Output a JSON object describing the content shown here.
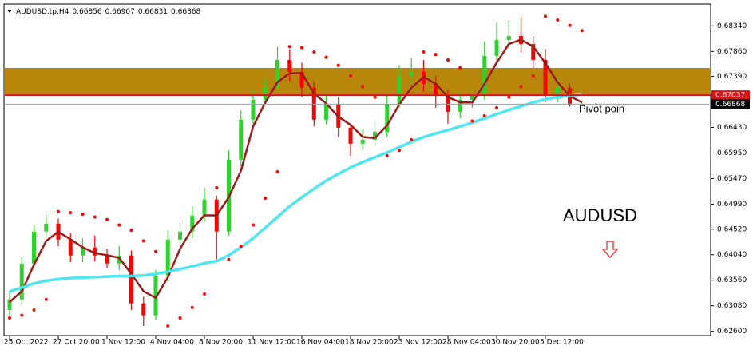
{
  "chart_data": {
    "type": "candlestick",
    "symbol": "AUDUSD.tp,H4",
    "categories": [
      "25 Oct 2022",
      null,
      null,
      null,
      "27 Oct 20:00",
      null,
      null,
      null,
      "1 Nov 12:00",
      null,
      null,
      null,
      "4 Nov 04:00",
      null,
      null,
      null,
      "8 Nov 20:00",
      null,
      null,
      null,
      "11 Nov 12:00",
      null,
      null,
      null,
      "16 Nov 04:00",
      null,
      null,
      null,
      "18 Nov 20:00",
      null,
      null,
      null,
      "23 Nov 12:00",
      null,
      null,
      null,
      "28 Nov 04:00",
      null,
      null,
      null,
      "30 Nov 20:00",
      null,
      null,
      null,
      "5 Dec 12:00",
      null,
      null,
      null
    ],
    "open": [
      0.63,
      0.632,
      0.63875,
      0.64475,
      0.64625,
      0.64325,
      0.64025,
      0.64175,
      0.64025,
      0.63875,
      0.64025,
      0.63125,
      0.629,
      0.6365,
      0.64325,
      0.64475,
      0.64775,
      0.65075,
      0.64475,
      0.65825,
      0.66575,
      0.6695,
      0.67175,
      0.677,
      0.67475,
      0.67175,
      0.66575,
      0.66875,
      0.66425,
      0.66125,
      0.662,
      0.6635,
      0.66875,
      0.674,
      0.67475,
      0.6725,
      0.67025,
      0.66725,
      0.6695,
      0.67025,
      0.67775,
      0.68075,
      0.6815,
      0.68,
      0.677,
      0.67025,
      0.67175,
      0.66856
    ],
    "high": [
      0.6335,
      0.64,
      0.646,
      0.648,
      0.6472,
      0.6445,
      0.6435,
      0.644,
      0.6415,
      0.642,
      0.6412,
      0.6325,
      0.6375,
      0.645,
      0.6465,
      0.6495,
      0.653,
      0.6515,
      0.66,
      0.6675,
      0.6715,
      0.6735,
      0.6795,
      0.679,
      0.6765,
      0.673,
      0.6705,
      0.67,
      0.665,
      0.664,
      0.6655,
      0.6705,
      0.676,
      0.6775,
      0.677,
      0.674,
      0.6715,
      0.671,
      0.672,
      0.6805,
      0.684,
      0.6845,
      0.685,
      0.6815,
      0.679,
      0.6735,
      0.6725,
      0.66907
    ],
    "low": [
      0.6285,
      0.631,
      0.638,
      0.6435,
      0.642,
      0.639,
      0.639,
      0.6392,
      0.6378,
      0.6375,
      0.63,
      0.627,
      0.6282,
      0.6355,
      0.642,
      0.6435,
      0.6465,
      0.6395,
      0.644,
      0.657,
      0.665,
      0.6685,
      0.671,
      0.673,
      0.67,
      0.6645,
      0.6648,
      0.6625,
      0.659,
      0.66,
      0.661,
      0.6625,
      0.668,
      0.6725,
      0.671,
      0.668,
      0.665,
      0.666,
      0.668,
      0.6695,
      0.6765,
      0.679,
      0.6785,
      0.6755,
      0.669,
      0.669,
      0.6682,
      0.66831
    ],
    "close": [
      0.632,
      0.63875,
      0.64475,
      0.64625,
      0.64325,
      0.64025,
      0.64175,
      0.64025,
      0.63875,
      0.64025,
      0.63125,
      0.629,
      0.6365,
      0.64325,
      0.64475,
      0.64775,
      0.65075,
      0.64475,
      0.65825,
      0.66575,
      0.6695,
      0.67175,
      0.677,
      0.67475,
      0.67175,
      0.66575,
      0.66875,
      0.66425,
      0.66125,
      0.662,
      0.6635,
      0.66875,
      0.674,
      0.67475,
      0.6725,
      0.67025,
      0.66725,
      0.6695,
      0.67025,
      0.67775,
      0.68075,
      0.6815,
      0.68,
      0.677,
      0.67025,
      0.67175,
      0.66875,
      0.66868
    ],
    "up_color": "#2fd12f",
    "down_color": "#ff0000",
    "series": [
      {
        "color": "#9b1b1b",
        "marker": "line",
        "width": 2.5,
        "values": [
          0.6315,
          0.6335,
          0.6385,
          0.643,
          0.6447,
          0.6433,
          0.6418,
          0.6407,
          0.6403,
          0.6398,
          0.6368,
          0.6335,
          0.6323,
          0.6362,
          0.6415,
          0.6453,
          0.6478,
          0.6478,
          0.6512,
          0.6562,
          0.6645,
          0.669,
          0.6728,
          0.6745,
          0.6745,
          0.6707,
          0.6688,
          0.6663,
          0.6648,
          0.6625,
          0.6623,
          0.6647,
          0.6686,
          0.6718,
          0.6738,
          0.6725,
          0.67,
          0.669,
          0.669,
          0.6725,
          0.6765,
          0.68,
          0.6808,
          0.6795,
          0.6764,
          0.6728,
          0.6702,
          0.669
        ]
      },
      {
        "color": "#4fe6f2",
        "marker": "line",
        "width": 3.5,
        "values": [
          0.6335,
          0.6342,
          0.635,
          0.6355,
          0.6358,
          0.636,
          0.6361,
          0.6362,
          0.6363,
          0.6364,
          0.6364,
          0.6365,
          0.6368,
          0.6372,
          0.6377,
          0.6382,
          0.6388,
          0.6392,
          0.6403,
          0.6418,
          0.6435,
          0.6455,
          0.6475,
          0.6495,
          0.6512,
          0.6528,
          0.6543,
          0.6556,
          0.6568,
          0.6578,
          0.6587,
          0.6596,
          0.6606,
          0.6616,
          0.6625,
          0.6632,
          0.6638,
          0.6645,
          0.6652,
          0.666,
          0.6668,
          0.6676,
          0.6683,
          0.669,
          0.6696,
          0.67,
          0.6703,
          0.6705
        ]
      },
      {
        "color": "#ff0000",
        "marker": "dot",
        "width": 2,
        "values": [
          0.6285,
          0.629,
          0.63,
          0.632,
          0.6485,
          0.6483,
          0.648,
          0.6475,
          0.647,
          0.646,
          0.645,
          0.643,
          0.641,
          0.627,
          0.6285,
          0.6305,
          0.633,
          0.653,
          0.6395,
          0.642,
          0.646,
          0.651,
          0.656,
          0.6795,
          0.6793,
          0.6785,
          0.6775,
          0.676,
          0.674,
          0.672,
          0.67,
          0.659,
          0.66,
          0.662,
          0.6785,
          0.678,
          0.677,
          0.6755,
          0.6655,
          0.6665,
          0.668,
          0.67,
          0.672,
          0.674,
          0.6852,
          0.6845,
          0.6835,
          0.6825
        ]
      }
    ],
    "zone": {
      "from": 0.6705,
      "to": 0.6755,
      "color": "#b8860b"
    },
    "levels": [
      {
        "value": 0.67037,
        "color": "#e01010",
        "width": 2
      },
      {
        "value": 0.66868,
        "color": "#9aa0a6",
        "width": 1
      }
    ],
    "annotations": [
      "Pivot poin",
      "AUDUSD"
    ],
    "ylim": [
      0.6252,
      0.6875
    ],
    "yticks": [
      {
        "value": 0.6834,
        "label": "0.68340"
      },
      {
        "value": 0.6786,
        "label": "0.67860"
      },
      {
        "value": 0.6739,
        "label": "0.67390"
      },
      {
        "value": 0.6643,
        "label": "0.66430"
      },
      {
        "value": 0.6595,
        "label": "0.65950"
      },
      {
        "value": 0.6547,
        "label": "0.65470"
      },
      {
        "value": 0.6499,
        "label": "0.64990"
      },
      {
        "value": 0.6452,
        "label": "0.64520"
      },
      {
        "value": 0.6404,
        "label": "0.64040"
      },
      {
        "value": 0.6356,
        "label": "0.63560"
      },
      {
        "value": 0.6308,
        "label": "0.63080"
      },
      {
        "value": 0.626,
        "label": "0.62600"
      }
    ]
  }
}
